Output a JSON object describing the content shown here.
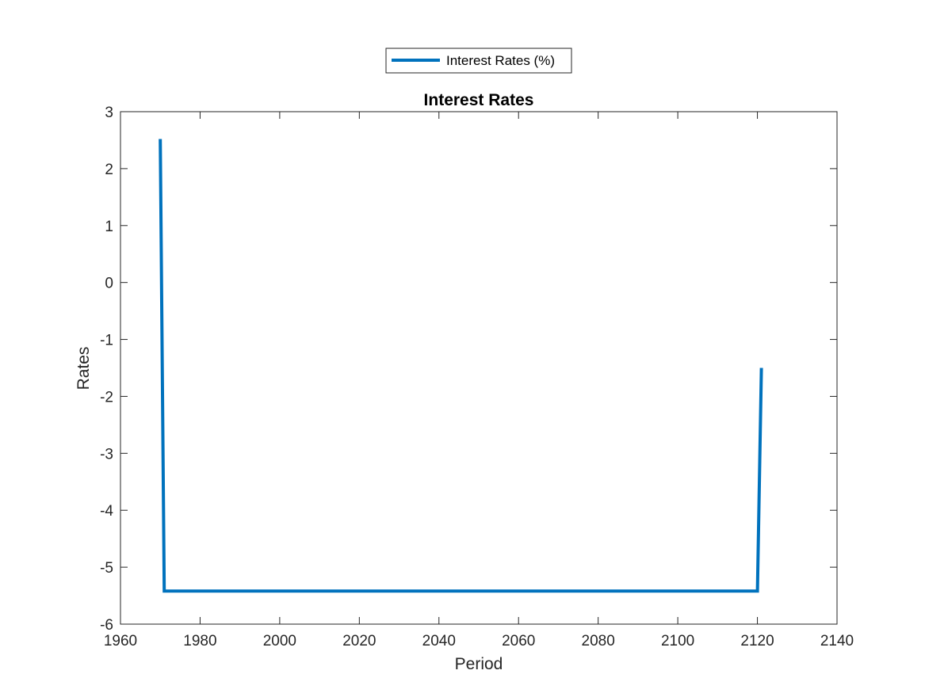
{
  "chart_data": {
    "type": "line",
    "title": "Interest Rates",
    "xlabel": "Period",
    "ylabel": "Rates",
    "xlim": [
      1960,
      2140
    ],
    "ylim": [
      -6,
      3
    ],
    "xticks": [
      1960,
      1980,
      2000,
      2020,
      2040,
      2060,
      2080,
      2100,
      2120,
      2140
    ],
    "yticks": [
      -6,
      -5,
      -4,
      -3,
      -2,
      -1,
      0,
      1,
      2,
      3
    ],
    "grid": false,
    "legend_position": "top-center (outside)",
    "series": [
      {
        "name": "Interest Rates (%)",
        "color": "#0072BD",
        "x": [
          1970,
          1971,
          2120,
          2121
        ],
        "y": [
          2.52,
          -5.42,
          -5.42,
          -1.5
        ]
      }
    ]
  }
}
